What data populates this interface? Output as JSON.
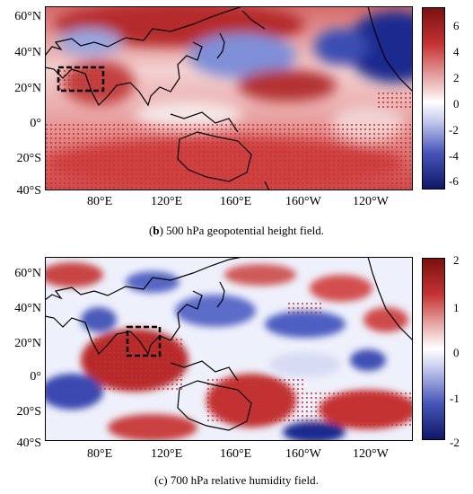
{
  "panel_b": {
    "caption_letter": "b",
    "caption_text": " 500 hPa geopotential height field.",
    "lat_labels": [
      "60°N",
      "40°N",
      "20°N",
      "0°",
      "20°S",
      "40°S"
    ],
    "lon_labels": [
      "80°E",
      "120°E",
      "160°E",
      "160°W",
      "120°W"
    ],
    "colorbar_labels": [
      "6",
      "4",
      "2",
      "0",
      "-2",
      "-4",
      "-6"
    ],
    "colorbar_range": [
      -7,
      7
    ]
  },
  "panel_c": {
    "caption_text": "(c) 700 hPa relative humidity field.",
    "lat_labels": [
      "60°N",
      "40°N",
      "20°N",
      "0°",
      "20°S",
      "40°S"
    ],
    "lon_labels": [
      "80°E",
      "120°E",
      "160°E",
      "160°W",
      "120°W"
    ],
    "colorbar_labels": [
      "2",
      "1",
      "0",
      "-1",
      "-2"
    ],
    "colorbar_range": [
      -2,
      2
    ]
  },
  "colors": {
    "positive": "#b22222",
    "neutral": "#ffffff",
    "negative": "#1a1a8c"
  }
}
